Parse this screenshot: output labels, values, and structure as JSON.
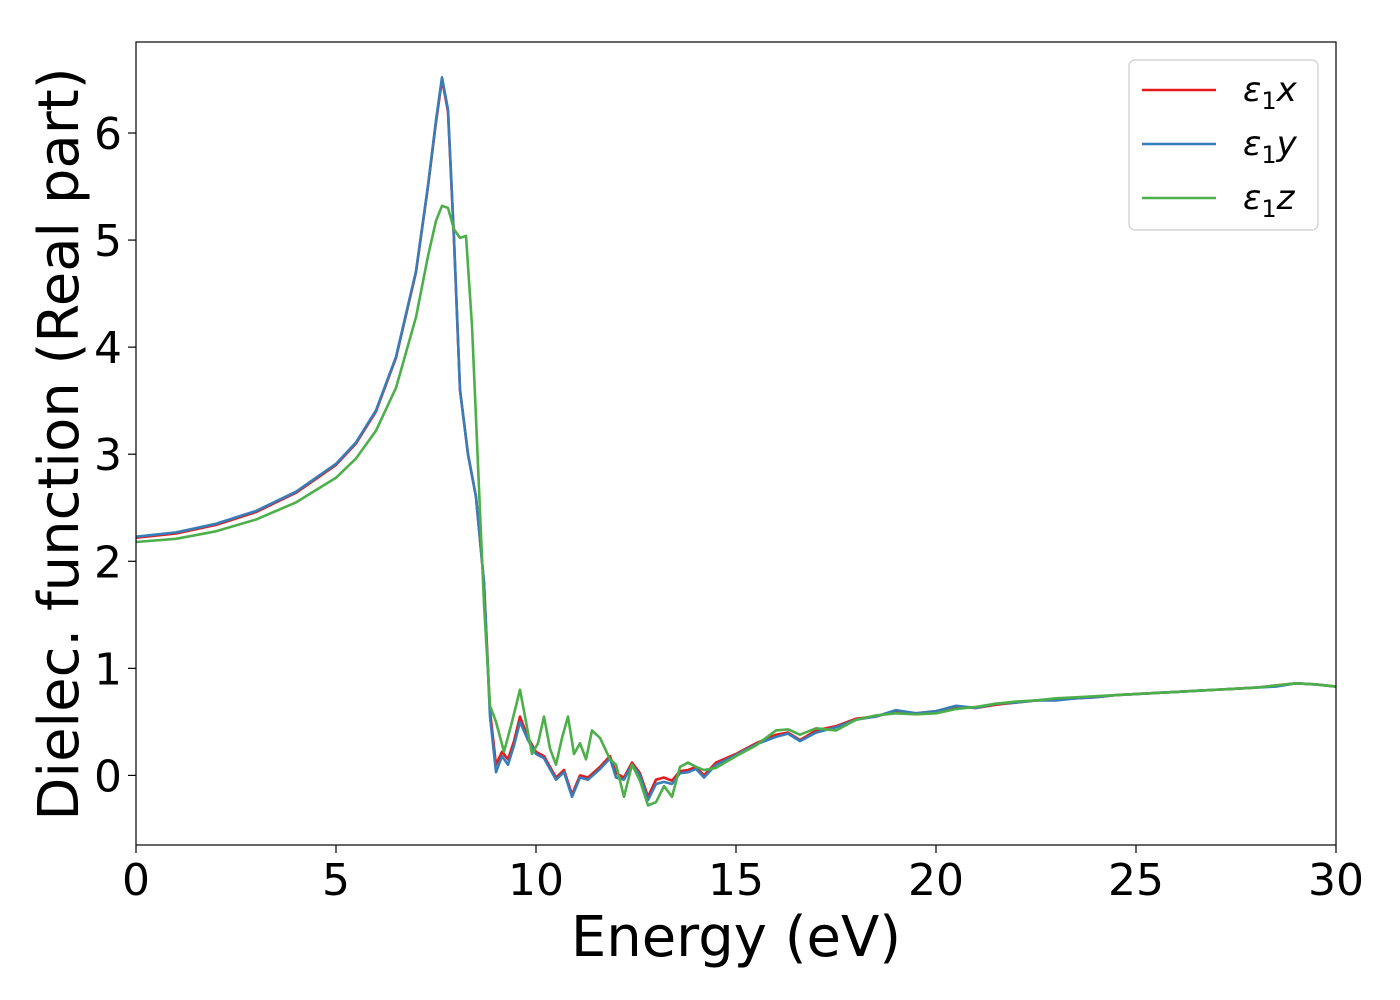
{
  "chart_data": {
    "type": "line",
    "xlabel": "Energy (eV)",
    "ylabel": "Dielec. function (Real part)",
    "xlim": [
      0,
      30
    ],
    "ylim": [
      -0.65,
      6.85
    ],
    "xticks": [
      0,
      5,
      10,
      15,
      20,
      25,
      30
    ],
    "yticks": [
      0,
      1,
      2,
      3,
      4,
      5,
      6
    ],
    "grid": false,
    "legend_position": "top-right",
    "series": [
      {
        "name": "ε₁x",
        "legend_base": "ε",
        "legend_sub": "1",
        "legend_suffix": "x",
        "color": "#e41a1c",
        "x": [
          0,
          1,
          2,
          3,
          4,
          5,
          5.5,
          6,
          6.5,
          7,
          7.3,
          7.5,
          7.65,
          7.8,
          7.95,
          8.1,
          8.3,
          8.5,
          8.7,
          8.85,
          9.0,
          9.15,
          9.3,
          9.45,
          9.6,
          9.8,
          10.0,
          10.2,
          10.5,
          10.7,
          10.9,
          11.1,
          11.3,
          11.6,
          11.85,
          12.0,
          12.2,
          12.4,
          12.6,
          12.8,
          13.0,
          13.2,
          13.4,
          13.6,
          13.8,
          14.0,
          14.2,
          14.5,
          15.0,
          15.5,
          16.0,
          16.3,
          16.6,
          17.0,
          17.5,
          18.0,
          18.5,
          19.0,
          19.5,
          20.0,
          20.5,
          21.0,
          21.5,
          22.0,
          22.5,
          23.0,
          23.5,
          24.0,
          24.5,
          25.0,
          25.5,
          26.0,
          26.5,
          27.0,
          27.5,
          28.0,
          28.5,
          29.0,
          29.5,
          30.0
        ],
        "y": [
          2.22,
          2.26,
          2.34,
          2.46,
          2.64,
          2.9,
          3.1,
          3.4,
          3.9,
          4.7,
          5.5,
          6.1,
          6.5,
          6.2,
          5.0,
          3.6,
          3.0,
          2.6,
          1.8,
          0.6,
          0.1,
          0.22,
          0.15,
          0.32,
          0.55,
          0.35,
          0.22,
          0.18,
          -0.02,
          0.05,
          -0.18,
          0.0,
          -0.02,
          0.08,
          0.18,
          0.02,
          -0.02,
          0.12,
          0.02,
          -0.2,
          -0.04,
          -0.02,
          -0.05,
          0.04,
          0.05,
          0.08,
          0.0,
          0.12,
          0.2,
          0.3,
          0.38,
          0.4,
          0.33,
          0.42,
          0.46,
          0.53,
          0.55,
          0.6,
          0.58,
          0.6,
          0.64,
          0.63,
          0.66,
          0.68,
          0.7,
          0.71,
          0.72,
          0.73,
          0.75,
          0.76,
          0.77,
          0.78,
          0.79,
          0.8,
          0.81,
          0.82,
          0.84,
          0.86,
          0.85,
          0.83
        ]
      },
      {
        "name": "ε₁y",
        "legend_base": "ε",
        "legend_sub": "1",
        "legend_suffix": "y",
        "color": "#377eb8",
        "x": [
          0,
          1,
          2,
          3,
          4,
          5,
          5.5,
          6,
          6.5,
          7,
          7.3,
          7.5,
          7.65,
          7.8,
          7.95,
          8.1,
          8.3,
          8.5,
          8.7,
          8.85,
          9.0,
          9.15,
          9.3,
          9.45,
          9.6,
          9.8,
          10.0,
          10.2,
          10.5,
          10.7,
          10.9,
          11.1,
          11.3,
          11.6,
          11.85,
          12.0,
          12.2,
          12.4,
          12.6,
          12.8,
          13.0,
          13.2,
          13.4,
          13.6,
          13.8,
          14.0,
          14.2,
          14.5,
          15.0,
          15.5,
          16.0,
          16.3,
          16.6,
          17.0,
          17.5,
          18.0,
          18.5,
          19.0,
          19.5,
          20.0,
          20.5,
          21.0,
          21.5,
          22.0,
          22.5,
          23.0,
          23.5,
          24.0,
          24.5,
          25.0,
          25.5,
          26.0,
          26.5,
          27.0,
          27.5,
          28.0,
          28.5,
          29.0,
          29.5,
          30.0
        ],
        "y": [
          2.23,
          2.27,
          2.35,
          2.47,
          2.65,
          2.91,
          3.11,
          3.41,
          3.91,
          4.71,
          5.51,
          6.12,
          6.52,
          6.22,
          5.02,
          3.6,
          3.0,
          2.6,
          1.8,
          0.55,
          0.03,
          0.18,
          0.1,
          0.28,
          0.5,
          0.33,
          0.2,
          0.16,
          -0.04,
          0.03,
          -0.2,
          -0.02,
          -0.04,
          0.06,
          0.16,
          -0.02,
          -0.04,
          0.1,
          0.0,
          -0.23,
          -0.08,
          -0.06,
          -0.08,
          0.02,
          0.03,
          0.06,
          -0.02,
          0.1,
          0.19,
          0.29,
          0.36,
          0.39,
          0.32,
          0.4,
          0.45,
          0.52,
          0.55,
          0.61,
          0.58,
          0.6,
          0.65,
          0.63,
          0.67,
          0.68,
          0.7,
          0.7,
          0.72,
          0.73,
          0.75,
          0.76,
          0.77,
          0.78,
          0.79,
          0.8,
          0.81,
          0.82,
          0.83,
          0.86,
          0.85,
          0.83
        ]
      },
      {
        "name": "ε₁z",
        "legend_base": "ε",
        "legend_sub": "1",
        "legend_suffix": "z",
        "color": "#4daf4a",
        "x": [
          0,
          1,
          2,
          3,
          4,
          5,
          5.5,
          6,
          6.5,
          7,
          7.3,
          7.5,
          7.65,
          7.8,
          7.95,
          8.1,
          8.25,
          8.4,
          8.55,
          8.7,
          8.85,
          9.0,
          9.2,
          9.4,
          9.6,
          9.75,
          9.9,
          10.05,
          10.2,
          10.35,
          10.5,
          10.65,
          10.8,
          10.95,
          11.1,
          11.25,
          11.4,
          11.6,
          11.85,
          12.0,
          12.2,
          12.4,
          12.6,
          12.8,
          13.0,
          13.2,
          13.4,
          13.6,
          13.8,
          14.0,
          14.2,
          14.5,
          15.0,
          15.5,
          16.0,
          16.3,
          16.6,
          17.0,
          17.5,
          18.0,
          18.5,
          19.0,
          19.5,
          20.0,
          20.5,
          21.0,
          21.5,
          22.0,
          22.5,
          23.0,
          23.5,
          24.0,
          24.5,
          25.0,
          25.5,
          26.0,
          26.5,
          27.0,
          27.5,
          28.0,
          28.5,
          29.0,
          29.5,
          30.0
        ],
        "y": [
          2.18,
          2.21,
          2.28,
          2.39,
          2.55,
          2.78,
          2.96,
          3.22,
          3.62,
          4.28,
          4.85,
          5.18,
          5.32,
          5.3,
          5.1,
          5.02,
          5.04,
          4.2,
          2.9,
          1.6,
          0.65,
          0.5,
          0.22,
          0.5,
          0.8,
          0.5,
          0.2,
          0.3,
          0.55,
          0.25,
          0.1,
          0.35,
          0.55,
          0.2,
          0.3,
          0.15,
          0.42,
          0.35,
          0.15,
          0.1,
          -0.2,
          0.1,
          -0.05,
          -0.28,
          -0.25,
          -0.1,
          -0.2,
          0.08,
          0.12,
          0.08,
          0.05,
          0.07,
          0.18,
          0.28,
          0.42,
          0.43,
          0.38,
          0.44,
          0.42,
          0.52,
          0.56,
          0.58,
          0.57,
          0.58,
          0.62,
          0.64,
          0.67,
          0.69,
          0.7,
          0.72,
          0.73,
          0.74,
          0.75,
          0.76,
          0.77,
          0.78,
          0.79,
          0.8,
          0.81,
          0.82,
          0.84,
          0.86,
          0.85,
          0.83
        ]
      }
    ]
  }
}
